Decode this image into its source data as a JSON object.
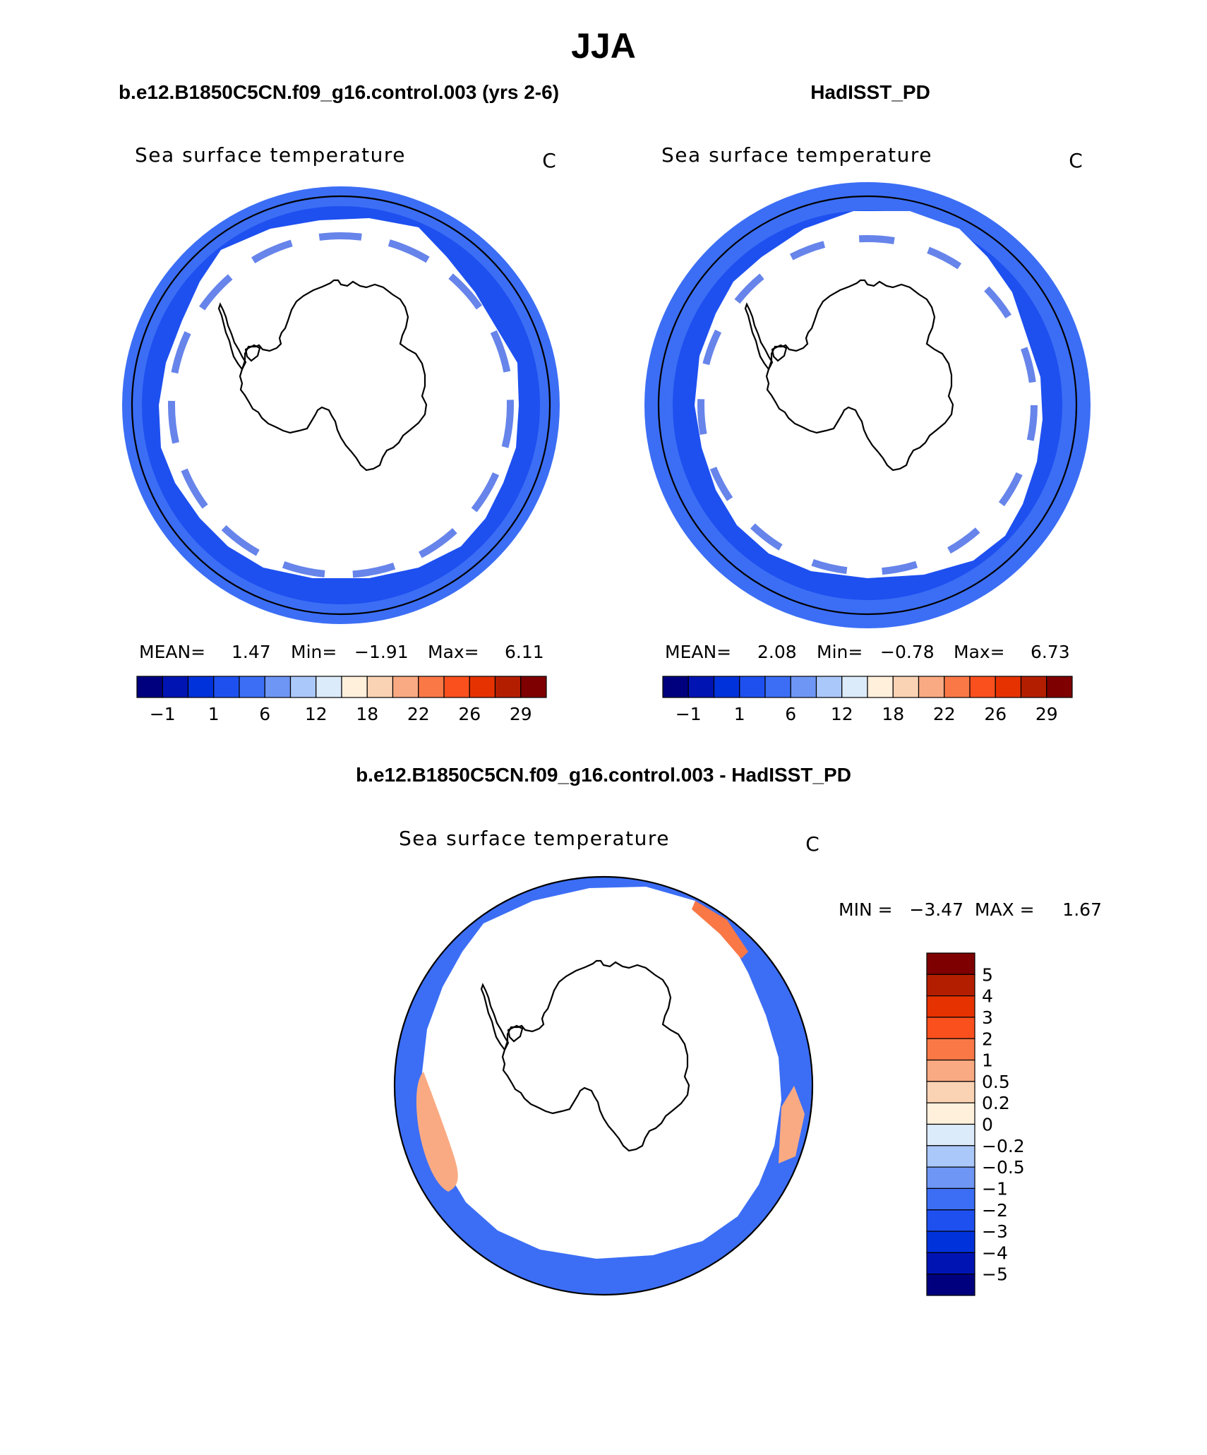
{
  "title": "JJA",
  "colors": {
    "sst": [
      "#00007f",
      "#0014b4",
      "#0032dc",
      "#1e50f0",
      "#3c6ef5",
      "#6e96f5",
      "#aac8fa",
      "#dcebfa",
      "#fff0dc",
      "#fad2b4",
      "#faaa82",
      "#fa7846",
      "#fa501e",
      "#e63200",
      "#b41e00",
      "#7f0000"
    ],
    "diff": [
      "#7f0000",
      "#b41e00",
      "#e63200",
      "#fa501e",
      "#fa7846",
      "#faaa82",
      "#fad2b4",
      "#fff0dc",
      "#dcebfa",
      "#aac8fa",
      "#6e96f5",
      "#3c6ef5",
      "#1e50f0",
      "#0032dc",
      "#0014b4",
      "#00007f"
    ]
  },
  "panels": [
    {
      "header": "b.e12.B1850C5CN.f09_g16.control.003 (yrs 2-6)",
      "subtitle": "Sea surface temperature",
      "units": "C",
      "stats": {
        "mean_label": "MEAN=",
        "mean": "1.47",
        "min_label": "Min=",
        "min": "−1.91",
        "max_label": "Max=",
        "max": "6.11"
      },
      "ticks": [
        "−1",
        "1",
        "6",
        "12",
        "18",
        "22",
        "26",
        "29"
      ]
    },
    {
      "header": "HadISST_PD",
      "subtitle": "Sea surface temperature",
      "units": "C",
      "stats": {
        "mean_label": "MEAN=",
        "mean": "2.08",
        "min_label": "Min=",
        "min": "−0.78",
        "max_label": "Max=",
        "max": "6.73"
      },
      "ticks": [
        "−1",
        "1",
        "6",
        "12",
        "18",
        "22",
        "26",
        "29"
      ]
    }
  ],
  "diff_panel": {
    "header": "b.e12.B1850C5CN.f09_g16.control.003 - HadISST_PD",
    "subtitle": "Sea surface temperature",
    "units": "C",
    "minmax": "MIN =   −3.47  MAX =     1.67",
    "ticks": [
      "5",
      "4",
      "3",
      "2",
      "1",
      "0.5",
      "0.2",
      "0",
      "−0.2",
      "−0.5",
      "−1",
      "−2",
      "−3",
      "−4",
      "−5"
    ]
  }
}
